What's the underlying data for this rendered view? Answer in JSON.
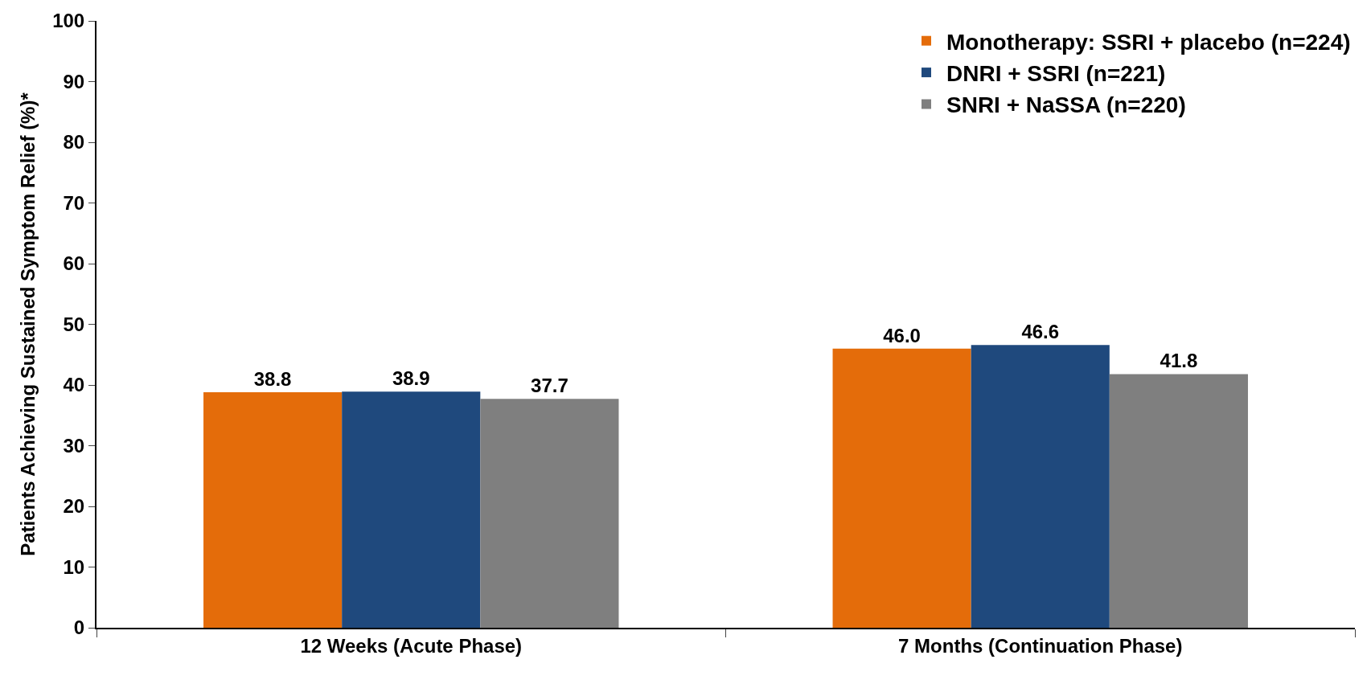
{
  "chart_data": {
    "type": "bar",
    "ylabel": "Patients Achieving Sustained Symptom Relief (%)*",
    "categories": [
      "12 Weeks (Acute Phase)",
      "7 Months (Continuation Phase)"
    ],
    "series": [
      {
        "name": "Monotherapy: SSRI + placebo (n=224)",
        "color": "#e46c0a",
        "values": [
          38.8,
          46.0
        ],
        "value_labels": [
          "38.8",
          "46.0"
        ]
      },
      {
        "name": "DNRI + SSRI (n=221)",
        "color": "#1f497d",
        "values": [
          38.9,
          46.6
        ],
        "value_labels": [
          "38.9",
          "46.6"
        ]
      },
      {
        "name": "SNRI + NaSSA (n=220)",
        "color": "#7f7f7f",
        "values": [
          37.7,
          41.8
        ],
        "value_labels": [
          "37.7",
          "41.8"
        ]
      }
    ],
    "ylim": [
      0,
      100
    ],
    "yticks": [
      0,
      10,
      20,
      30,
      40,
      50,
      60,
      70,
      80,
      90,
      100
    ],
    "legend": "top right"
  }
}
